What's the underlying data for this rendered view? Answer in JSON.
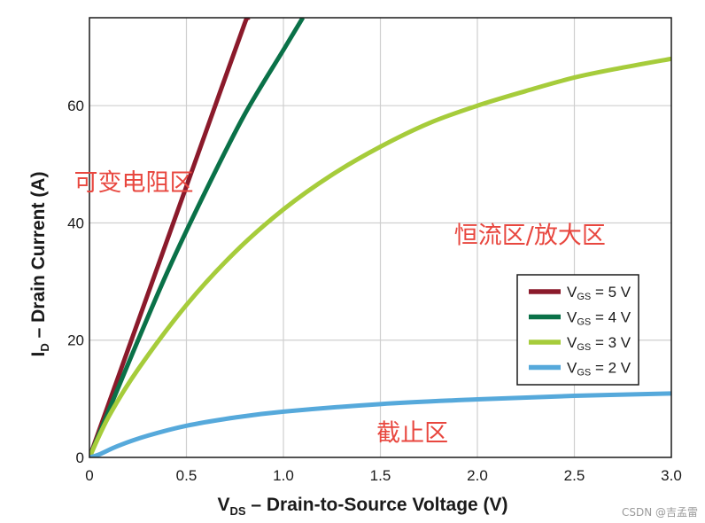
{
  "chart_data": {
    "type": "line",
    "xlabel": {
      "main": "V",
      "sub": "DS",
      "rest": " – Drain-to-Source Voltage (V)"
    },
    "ylabel": {
      "main": "I",
      "sub": "D",
      "rest": " – Drain Current (A)"
    },
    "xlim": [
      0,
      3.0
    ],
    "ylim": [
      0,
      75
    ],
    "x_ticks": [
      0,
      0.5,
      1.0,
      1.5,
      2.0,
      2.5,
      3.0
    ],
    "x_tick_labels": [
      "0",
      "0.5",
      "1.0",
      "1.5",
      "2.0",
      "2.5",
      "3.0"
    ],
    "y_ticks": [
      0,
      20,
      40,
      60
    ],
    "y_tick_labels": [
      "0",
      "20",
      "40",
      "60"
    ],
    "grid": true,
    "legend_position": "right-middle",
    "series": [
      {
        "label_main": "V",
        "label_sub": "GS",
        "label_rest": " = 5 V",
        "color": "#8b1a2b",
        "x": [
          0,
          0.2,
          0.4,
          0.6,
          0.8,
          0.82
        ],
        "y": [
          0,
          18.5,
          37,
          55.5,
          74,
          75
        ]
      },
      {
        "label_main": "V",
        "label_sub": "GS",
        "label_rest": " = 4 V",
        "color": "#0a7148",
        "x": [
          0,
          0.2,
          0.4,
          0.6,
          0.8,
          1.0,
          1.1
        ],
        "y": [
          0,
          16,
          31.5,
          45.5,
          58.5,
          69.5,
          75
        ]
      },
      {
        "label_main": "V",
        "label_sub": "GS",
        "label_rest": " = 3 V",
        "color": "#a6cc3b",
        "x": [
          0,
          0.1,
          0.25,
          0.5,
          0.75,
          1.0,
          1.25,
          1.5,
          1.75,
          2.0,
          2.25,
          2.5,
          2.75,
          3.0
        ],
        "y": [
          0,
          7,
          15,
          26,
          35,
          42.3,
          48.2,
          53,
          57,
          60,
          62.5,
          64.8,
          66.5,
          68
        ]
      },
      {
        "label_main": "V",
        "label_sub": "GS",
        "label_rest": " = 2 V",
        "color": "#56a9db",
        "x": [
          0,
          0.05,
          0.15,
          0.3,
          0.5,
          0.75,
          1.0,
          1.5,
          2.0,
          2.5,
          3.0
        ],
        "y": [
          0,
          0.5,
          2,
          3.7,
          5.4,
          6.8,
          7.8,
          9.1,
          9.9,
          10.5,
          10.9
        ]
      }
    ],
    "annotations": [
      {
        "text": "可变电阻区",
        "x": -0.08,
        "y": 45.5
      },
      {
        "text": "恒流区/放大区",
        "x": 1.88,
        "y": 36.5
      },
      {
        "text": "截止区",
        "x": 1.48,
        "y": 2.8
      }
    ]
  },
  "watermark": "CSDN @吉孟雷",
  "colors": {
    "annotation": "#e8473f",
    "axis": "#1a1a1a",
    "grid": "#cfcfcf"
  }
}
